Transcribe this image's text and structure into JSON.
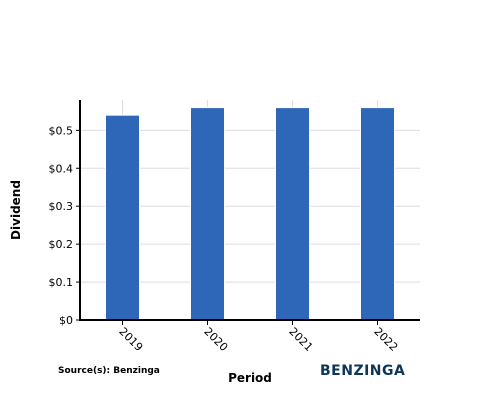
{
  "chart_data": {
    "type": "bar",
    "categories": [
      "2019",
      "2020",
      "2021",
      "2022"
    ],
    "values": [
      0.54,
      0.56,
      0.56,
      0.56
    ],
    "xlabel": "Period",
    "ylabel": "Dividend",
    "ylim": [
      0,
      0.58
    ],
    "yticks": [
      0,
      0.1,
      0.2,
      0.3,
      0.4,
      0.5
    ],
    "ytick_labels": [
      "$0",
      "$0.1",
      "$0.2",
      "$0.3",
      "$0.4",
      "$0.5"
    ],
    "grid": true,
    "bar_color": "#2f67b8",
    "grid_color": "#dddddd"
  },
  "source_text": "Source(s): Benzinga",
  "brand": "BENZINGA",
  "brand_color": "#0d3557"
}
